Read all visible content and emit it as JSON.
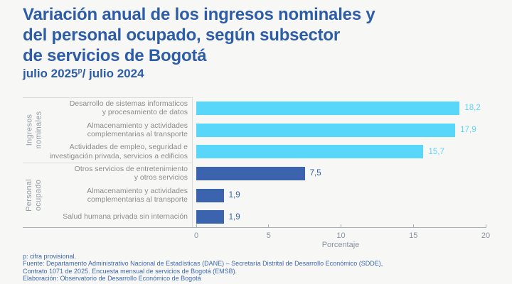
{
  "header": {
    "title_lines": [
      "Variación anual de los ingresos nominales y",
      "del personal ocupado, según subsector",
      "de servicios de Bogotá"
    ],
    "subtitle": {
      "prefix": "julio 2025",
      "sup": "p",
      "suffix": "/ julio 2024"
    }
  },
  "chart_data": {
    "type": "bar",
    "orientation": "horizontal",
    "title": "Variación anual de los ingresos nominales y del personal ocupado, según subsector de servicios de Bogotá",
    "subtitle": "julio 2025p/ julio 2024",
    "xlabel": "Porcentaje",
    "xlim": [
      0,
      20
    ],
    "xticks": [
      0,
      5,
      10,
      15,
      20
    ],
    "xtick_labels": [
      "0",
      "5",
      "10",
      "15",
      "20"
    ],
    "grid": false,
    "legend": "none",
    "groups": [
      {
        "name": "Ingresos nominales",
        "name_lines": [
          "Ingresos",
          "nominales"
        ],
        "color": "#58d7fb",
        "value_text_color": "#5fd4f5",
        "rows": [
          {
            "label": "Desarrollo de sistemas informaticos y procesamiento de datos",
            "label_lines": [
              "Desarrollo de sistemas informaticos",
              "y procesamiento de datos"
            ],
            "value": 18.2,
            "value_label": "18,2"
          },
          {
            "label": "Almacenamiento y actividades complementarias al transporte",
            "label_lines": [
              "Almacenamiento y actividades",
              "complementarias al transporte"
            ],
            "value": 17.9,
            "value_label": "17,9"
          },
          {
            "label": "Actividades de empleo, seguridad e investigación privada, servicios a edificios",
            "label_lines": [
              "Actividades de empleo, seguridad e",
              "investigación privada, servicios a edificios"
            ],
            "value": 15.7,
            "value_label": "15,7"
          }
        ]
      },
      {
        "name": "Personal ocupado",
        "name_lines": [
          "Personal",
          "ocupado"
        ],
        "color": "#3c63ad",
        "value_text_color": "#2f5ea8",
        "rows": [
          {
            "label": "Otros servicios de entretenimiento y otros servicios",
            "label_lines": [
              "Otros servicios de entretenimiento",
              "y otros servicios"
            ],
            "value": 7.5,
            "value_label": "7,5"
          },
          {
            "label": "Almacenamiento y actividades complementarias al transporte",
            "label_lines": [
              "Almacenamiento y actividades",
              "complementarias al transporte"
            ],
            "value": 1.9,
            "value_label": "1,9"
          },
          {
            "label": "Salud humana privada sin internación",
            "label_lines": [
              "Salud humana privada sin internación"
            ],
            "value": 1.9,
            "value_label": "1,9"
          }
        ]
      }
    ]
  },
  "footer": {
    "lines": [
      "p: cifra provisional.",
      "Fuente: Departamento Administrativo Nacional de Estadísticas (DANE) – Secretaría Distrital de Desarrollo Económico (SDDE),",
      "Contrato 1071 de 2025. Encuesta mensual de servicios de Bogotá (EMSB).",
      "Elaboración: Observatorio de Desarrollo Económico de Bogotá"
    ]
  },
  "colors": {
    "background": "#f7f7f6",
    "title_blue": "#2e5da8",
    "light_blue_bar": "#58d7fb",
    "dark_blue_bar": "#3c63ad",
    "category_label_gray": "#8c8c8c",
    "axis_gray": "#8a93a1",
    "footer_blue": "#3e68ae"
  }
}
